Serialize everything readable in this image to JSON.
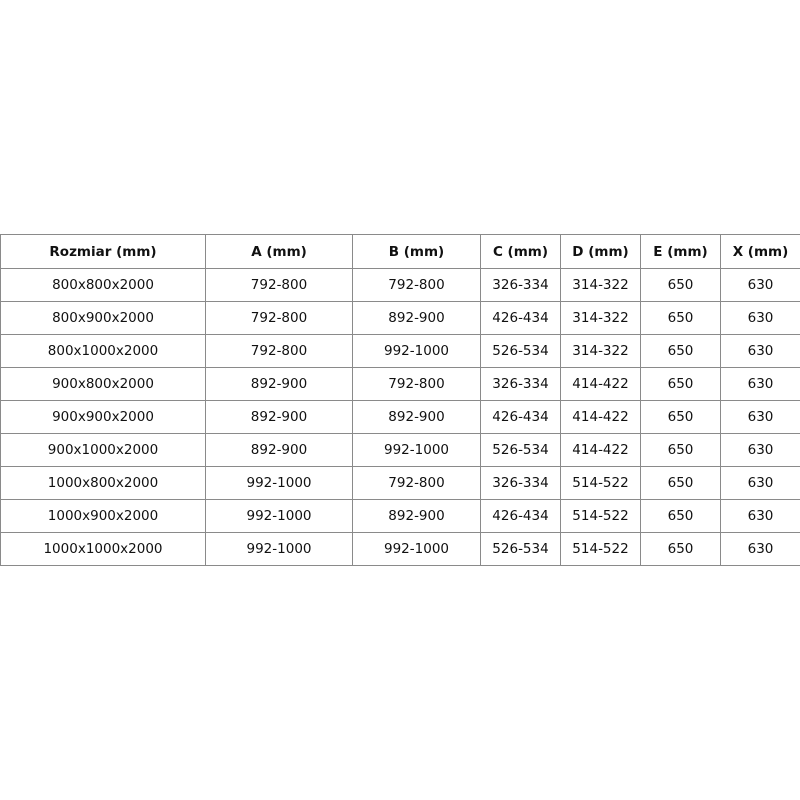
{
  "table": {
    "headers": [
      "Rozmiar (mm)",
      "A (mm)",
      "B (mm)",
      "C (mm)",
      "D (mm)",
      "E (mm)",
      "X (mm)"
    ],
    "rows": [
      [
        "800x800x2000",
        "792-800",
        "792-800",
        "326-334",
        "314-322",
        "650",
        "630"
      ],
      [
        "800x900x2000",
        "792-800",
        "892-900",
        "426-434",
        "314-322",
        "650",
        "630"
      ],
      [
        "800x1000x2000",
        "792-800",
        "992-1000",
        "526-534",
        "314-322",
        "650",
        "630"
      ],
      [
        "900x800x2000",
        "892-900",
        "792-800",
        "326-334",
        "414-422",
        "650",
        "630"
      ],
      [
        "900x900x2000",
        "892-900",
        "892-900",
        "426-434",
        "414-422",
        "650",
        "630"
      ],
      [
        "900x1000x2000",
        "892-900",
        "992-1000",
        "526-534",
        "414-422",
        "650",
        "630"
      ],
      [
        "1000x800x2000",
        "992-1000",
        "792-800",
        "326-334",
        "514-522",
        "650",
        "630"
      ],
      [
        "1000x900x2000",
        "992-1000",
        "892-900",
        "426-434",
        "514-522",
        "650",
        "630"
      ],
      [
        "1000x1000x2000",
        "992-1000",
        "992-1000",
        "526-534",
        "514-522",
        "650",
        "630"
      ]
    ]
  }
}
